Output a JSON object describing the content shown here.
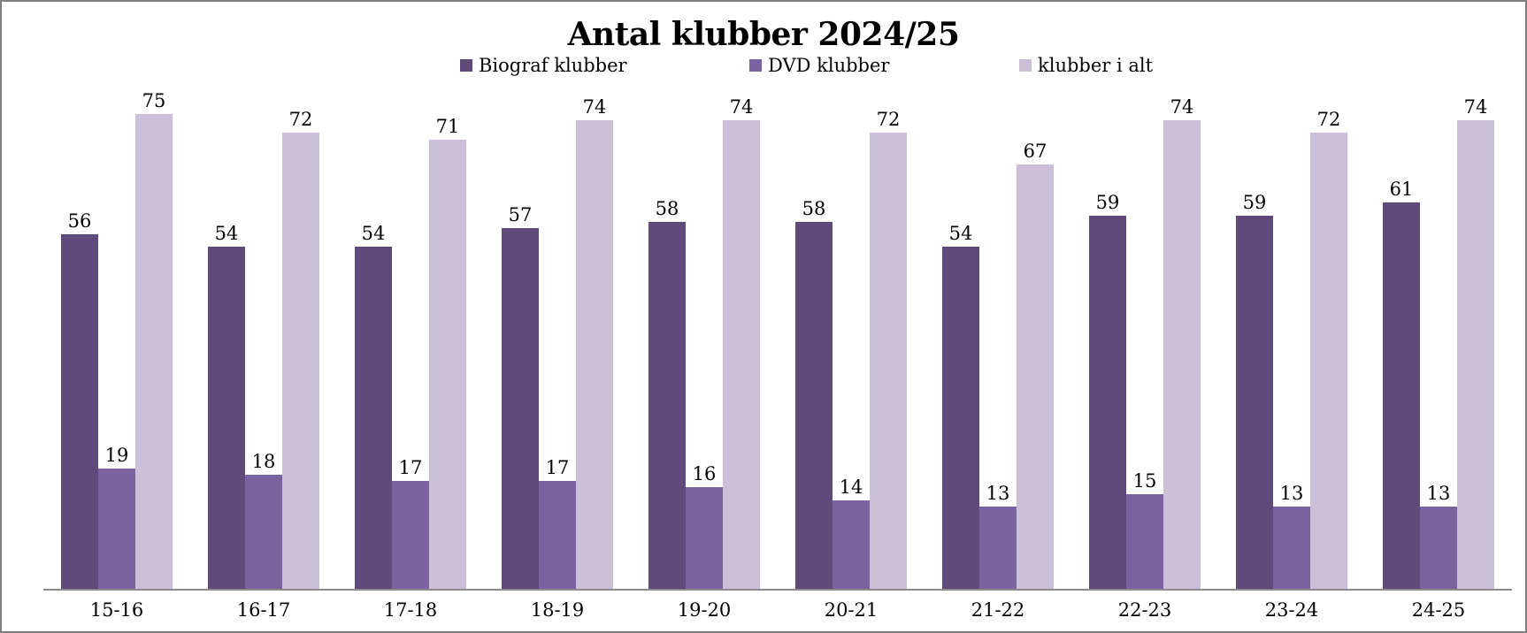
{
  "title": "Antal klubber 2024/25",
  "legend": {
    "items": [
      {
        "label": "Biograf klubber"
      },
      {
        "label": "DVD klubber"
      },
      {
        "label": "klubber i alt"
      }
    ]
  },
  "colors": {
    "series_dark": "#604a7b",
    "series_medium": "#7b63a2",
    "series_light": "#cbc0d8",
    "axis_line": "#8b8b8b",
    "frame_border": "#7f7f7f",
    "text": "#000000"
  },
  "chart_data": {
    "type": "bar",
    "title": "Antal klubber 2024/25",
    "categories": [
      "15-16",
      "16-17",
      "17-18",
      "18-19",
      "19-20",
      "20-21",
      "21-22",
      "22-23",
      "23-24",
      "24-25"
    ],
    "series": [
      {
        "name": "Biograf klubber",
        "color": "#604a7b",
        "values": [
          56,
          54,
          54,
          57,
          58,
          58,
          54,
          59,
          59,
          61
        ]
      },
      {
        "name": "DVD klubber",
        "color": "#7b63a2",
        "values": [
          19,
          18,
          17,
          17,
          16,
          14,
          13,
          15,
          13,
          13
        ]
      },
      {
        "name": "klubber i alt",
        "color": "#cbc0d8",
        "values": [
          75,
          72,
          71,
          74,
          74,
          72,
          67,
          74,
          72,
          74
        ]
      }
    ],
    "xlabel": "",
    "ylabel": "",
    "ylim": [
      0,
      78
    ],
    "grid": false,
    "y_axis_visible": false,
    "data_labels": true,
    "legend_position": "top"
  }
}
